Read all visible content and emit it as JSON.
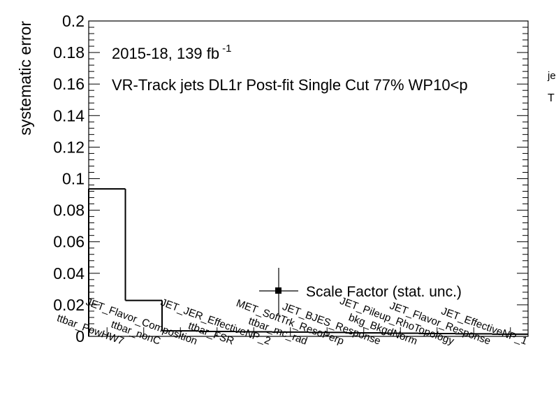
{
  "chart_data": {
    "type": "bar",
    "ylabel": "systematic error",
    "ylim": [
      0,
      0.2
    ],
    "y_ticks": [
      "0",
      "0.02",
      "0.04",
      "0.06",
      "0.08",
      "0.1",
      "0.12",
      "0.14",
      "0.16",
      "0.18",
      "0.2"
    ],
    "annotation_lumi_main": "2015-18, 139 fb",
    "annotation_lumi_sup": "-1",
    "annotation_selection": "VR-Track jets DL1r Post-fit Single Cut 77% WP10<p",
    "annotation_clipped_sup": "je",
    "annotation_clipped_T": "T",
    "legend": "Scale Factor (stat. unc.)",
    "legend_placement": "right-middle",
    "categories": [
      "ttbar_PowHW7",
      "ttbar_nonC",
      "JET_Flavor_Composition",
      "ttbar_FSR",
      "JET_JER_EffectiveNP_2",
      "ttbar_mc_rad",
      "MET_SoftTrk_ResoPerp",
      "JET_BJES_Response",
      "bkg_BkgdNorm",
      "JET_Pileup_RhoTopology",
      "JET_Flavor_Response",
      "JET_EffectiveNP_1"
    ],
    "values": [
      0.0935,
      0.0228,
      0.0035,
      0.0031,
      0.0029,
      0.0027,
      0.0025,
      0.0022,
      0.002,
      0.0018,
      0.0016,
      0.0014
    ]
  }
}
